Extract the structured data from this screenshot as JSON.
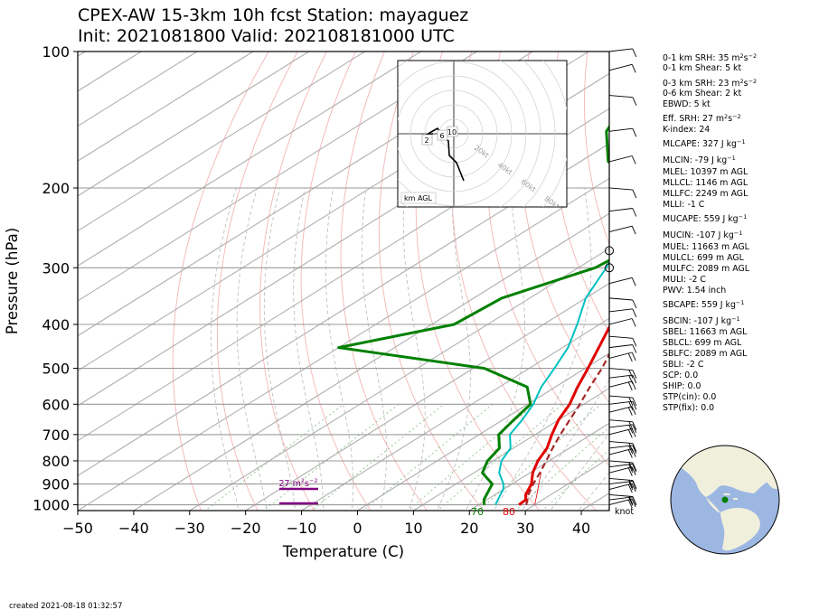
{
  "title_line1": "CPEX-AW 15-3km  10h fcst  Station: mayaguez",
  "title_line2": "Init: 2021081800  Valid: 2021081810‌00 UTC",
  "created": "created 2021-08-18 01:32:57",
  "indices": [
    {
      "text": "0-1 km SRH: 35 m",
      "sup": "2",
      "tail": "s",
      "sup2": "−2"
    },
    {
      "text": "0-1 km Shear: 5 kt"
    },
    {
      "text": "0-3 km SRH: 23 m",
      "sup": "2",
      "tail": "s",
      "sup2": "−2"
    },
    {
      "text": "0-6 km Shear: 2 kt"
    },
    {
      "text": "EBWD: 5 kt"
    },
    {
      "text": "Eff. SRH: 27 m",
      "sup": "2",
      "tail": "s",
      "sup2": "−2"
    },
    {
      "text": "K-index: 24"
    },
    {
      "text": "MLCAPE: 327 J kg",
      "sup": "−1"
    },
    {
      "text": "MLCIN: -79 J kg",
      "sup": "−1"
    },
    {
      "text": "MLEL: 10397 m AGL"
    },
    {
      "text": "MLLCL: 1146 m AGL"
    },
    {
      "text": "MLLFC: 2249 m AGL"
    },
    {
      "text": "MLLI: -1 C"
    },
    {
      "text": "MUCAPE: 559 J kg",
      "sup": "−1"
    },
    {
      "text": "MUCIN: -107 J kg",
      "sup": "−1"
    },
    {
      "text": "MUEL: 11663 m AGL"
    },
    {
      "text": "MULCL: 699 m AGL"
    },
    {
      "text": "MULFC: 2089 m AGL"
    },
    {
      "text": "MULI: -2 C"
    },
    {
      "text": "PWV: 1.54 inch"
    },
    {
      "text": "SBCAPE: 559 J kg",
      "sup": "−1"
    },
    {
      "text": "SBCIN: -107 J kg",
      "sup": "−1"
    },
    {
      "text": "SBEL: 11663 m AGL"
    },
    {
      "text": "SBLCL: 699 m AGL"
    },
    {
      "text": "SBLFC: 2089 m AGL"
    },
    {
      "text": "SBLI: -2 C"
    },
    {
      "text": "SCP: 0.0"
    },
    {
      "text": "SHIP: 0.0"
    },
    {
      "text": "STP(cin): 0.0"
    },
    {
      "text": "STP(fix): 0.0"
    }
  ],
  "colors": {
    "temperature": "#e00000",
    "dewpoint": "#008000",
    "wetbulb": "#00c0c0",
    "parcel": "#a52a2a",
    "srh_bar": "#800080",
    "map_land": "#f0efdc",
    "map_ocean": "#9db7e3"
  },
  "chart_data": {
    "type": "line",
    "xlabel": "Temperature (C)",
    "ylabel": "Pressure (hPa)",
    "xlim": [
      -50,
      45
    ],
    "ylim": [
      1030,
      100
    ],
    "y_log_scale": true,
    "x_ticks": [
      -50,
      -40,
      -30,
      -20,
      -10,
      0,
      10,
      20,
      30,
      40
    ],
    "y_ticks": [
      100,
      200,
      300,
      400,
      500,
      600,
      700,
      800,
      900,
      1000
    ],
    "grid": true,
    "series": [
      {
        "name": "temperature",
        "pressure": [
          1000,
          975,
          950,
          925,
          900,
          850,
          800,
          750,
          700,
          650,
          600,
          550,
          500,
          450,
          400,
          350,
          300,
          250,
          200,
          150,
          100
        ],
        "values": [
          27.2,
          27.0,
          25.5,
          24.5,
          23.5,
          20.5,
          18.0,
          16.0,
          13.0,
          10.0,
          7.5,
          4.0,
          0.5,
          -3.5,
          -8.0,
          -14.0,
          -21.0,
          -30.0,
          -42.0,
          -58.0,
          -76.0
        ]
      },
      {
        "name": "dewpoint",
        "pressure": [
          1000,
          975,
          950,
          925,
          900,
          850,
          800,
          750,
          700,
          650,
          600,
          550,
          500,
          450,
          400,
          350,
          300,
          275,
          250,
          225,
          200,
          175,
          150,
          125,
          110,
          100
        ],
        "values": [
          21.0,
          19.5,
          18.5,
          17.5,
          16.5,
          11.5,
          9.0,
          7.5,
          3.5,
          2.0,
          0.5,
          -5.0,
          -18.0,
          -50.0,
          -36.0,
          -35.0,
          -27.0,
          -26.0,
          -30.0,
          -32.0,
          -40.0,
          -55.0,
          -64.0,
          -70.0,
          -75.0,
          -78.0
        ]
      },
      {
        "name": "wetbulb",
        "pressure": [
          1000,
          975,
          950,
          925,
          900,
          850,
          800,
          750,
          700,
          650,
          600,
          550,
          500,
          450,
          400,
          350,
          300,
          250,
          200,
          150,
          125,
          110,
          100
        ],
        "values": [
          23.0,
          22.0,
          21.0,
          20.0,
          18.5,
          14.5,
          11.5,
          9.5,
          5.5,
          3.5,
          1.0,
          -2.5,
          -5.5,
          -9.0,
          -14.0,
          -20.0,
          -25.0,
          -32.0,
          -43.0,
          -58.0,
          -67.0,
          -74.0,
          -78.0
        ]
      },
      {
        "name": "parcel",
        "pressure": [
          1000,
          950,
          900,
          850,
          800,
          750,
          700,
          650,
          600,
          550,
          500,
          450,
          400,
          350,
          300,
          250,
          200,
          150,
          100
        ],
        "values": [
          28.5,
          26.0,
          23.8,
          21.8,
          19.5,
          17.0,
          14.5,
          12.0,
          9.3,
          6.2,
          3.0,
          -1.0,
          -5.5,
          -11.5,
          -19.0,
          -28.5,
          -40.0,
          -55.0,
          -74.0
        ]
      }
    ],
    "surface_labels": {
      "dewpoint": "70",
      "temperature": "80"
    },
    "srh_label": "27 m",
    "srh_label_sup": "2",
    "srh_label_tail": "s",
    "srh_label_sup2": "−2",
    "hodograph": {
      "ring_labels": [
        "20kt",
        "40kt",
        "60kt",
        "80kt"
      ],
      "height_labels": [
        "2",
        "6",
        "10"
      ],
      "footer": "km AGL"
    },
    "wind_unit_label": "knot"
  }
}
